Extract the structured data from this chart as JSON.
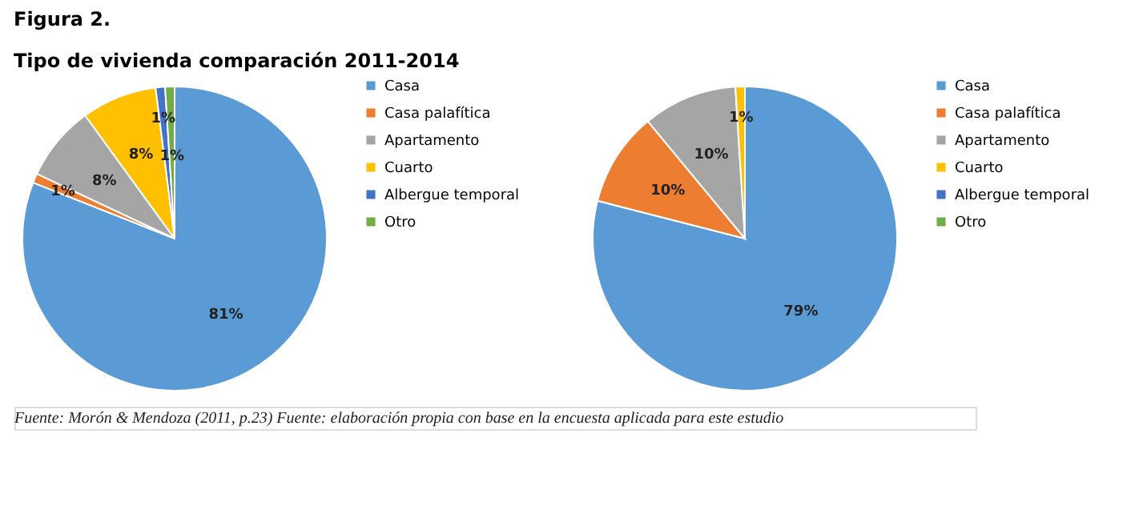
{
  "chart_data": [
    {
      "type": "pie",
      "title": "Figura 2.",
      "subtitle": "Tipo de vivienda comparación 2011-2014",
      "categories": [
        "Casa",
        "Casa palafítica",
        "Apartamento",
        "Cuarto",
        "Albergue temporal",
        "Otro"
      ],
      "values": [
        81,
        1,
        8,
        8,
        1,
        1
      ],
      "colors": [
        "#5b9bd5",
        "#ed7d31",
        "#a5a5a5",
        "#ffc000",
        "#4472c4",
        "#70ad47"
      ],
      "value_labels": [
        "81%",
        "1%",
        "8%",
        "8%",
        "1%",
        "1%"
      ],
      "legend": "right",
      "annotations": [
        "Fuente: Morón & Mendoza (2011, p.23) Fuente: elaboración propia con base en la encuesta aplicada para este estudio"
      ]
    },
    {
      "type": "pie",
      "categories": [
        "Casa",
        "Casa palafítica",
        "Apartamento",
        "Cuarto",
        "Albergue temporal",
        "Otro"
      ],
      "values": [
        79,
        10,
        10,
        1,
        0,
        0
      ],
      "colors": [
        "#5b9bd5",
        "#ed7d31",
        "#a5a5a5",
        "#ffc000",
        "#4472c4",
        "#70ad47"
      ],
      "value_labels": [
        "79%",
        "10%",
        "10%",
        "1%",
        null,
        null
      ],
      "legend": "right"
    }
  ]
}
